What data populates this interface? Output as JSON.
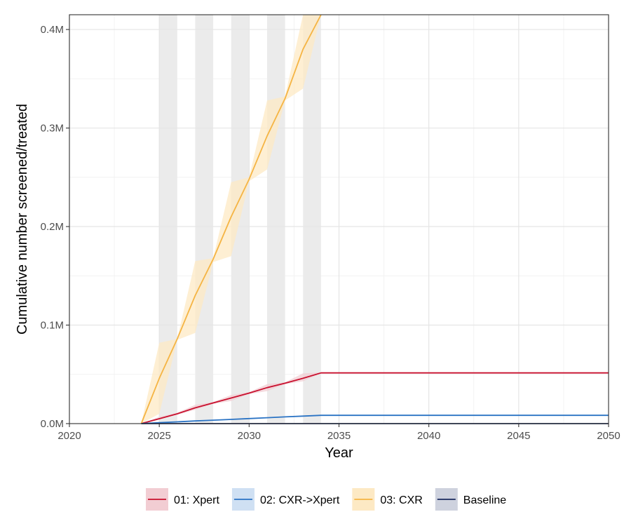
{
  "chart_data": {
    "type": "line",
    "title": "",
    "xlabel": "Year",
    "ylabel": "Cumulative number screened/treated",
    "xlim": [
      2020,
      2050
    ],
    "ylim": [
      0,
      415000
    ],
    "x_ticks": [
      2020,
      2025,
      2030,
      2035,
      2040,
      2045,
      2050
    ],
    "x_tick_labels": [
      "2020",
      "2025",
      "2030",
      "2035",
      "2040",
      "2045",
      "2050"
    ],
    "y_ticks": [
      0,
      100000,
      200000,
      300000,
      400000
    ],
    "y_tick_labels": [
      "0.0M",
      "0.1M",
      "0.2M",
      "0.3M",
      "0.4M"
    ],
    "grid": true,
    "shaded_periods": [
      [
        2025,
        2026
      ],
      [
        2027,
        2028
      ],
      [
        2029,
        2030
      ],
      [
        2031,
        2032
      ],
      [
        2033,
        2034
      ]
    ],
    "shade_color": "#ebebeb",
    "legend_position": "bottom",
    "series": [
      {
        "name": "01: Xpert",
        "color": "#c8102e",
        "fill": "#f2cdd3",
        "x": [
          2024,
          2025,
          2026,
          2027,
          2028,
          2029,
          2030,
          2031,
          2032,
          2033,
          2034,
          2050
        ],
        "y": [
          0,
          5000,
          10000,
          16000,
          21000,
          26000,
          31000,
          36500,
          41000,
          46000,
          51500,
          51500
        ],
        "lower": [
          0,
          4000,
          9000,
          14000,
          20000,
          23000,
          30000,
          33000,
          40000,
          43000,
          51000,
          51000
        ],
        "upper": [
          0,
          7000,
          11000,
          19000,
          22000,
          29000,
          32000,
          40000,
          42000,
          51000,
          52000,
          52000
        ]
      },
      {
        "name": "02: CXR->Xpert",
        "color": "#2a73c4",
        "fill": "#cfe0f3",
        "x": [
          2024,
          2025,
          2026,
          2027,
          2028,
          2029,
          2030,
          2031,
          2032,
          2033,
          2034,
          2050
        ],
        "y": [
          0,
          900,
          1800,
          2700,
          3500,
          4300,
          5100,
          6000,
          6800,
          7600,
          8400,
          8400
        ],
        "lower": [
          0,
          700,
          1600,
          2400,
          3300,
          4000,
          4900,
          5600,
          6600,
          7200,
          8200,
          8200
        ],
        "upper": [
          0,
          1100,
          2000,
          3000,
          3700,
          4600,
          5300,
          6400,
          7000,
          8000,
          8600,
          8600
        ]
      },
      {
        "name": "03: CXR",
        "color": "#f5b443",
        "fill": "#fde9c4",
        "x": [
          2024,
          2025,
          2026,
          2027,
          2028,
          2029,
          2030,
          2031,
          2032,
          2033,
          2034
        ],
        "y": [
          0,
          46000,
          86000,
          130000,
          167000,
          210000,
          248000,
          292000,
          330000,
          380000,
          415000
        ],
        "lower": [
          0,
          10000,
          85000,
          92000,
          164000,
          170000,
          246000,
          258000,
          328000,
          340000,
          415000
        ],
        "upper": [
          0,
          82000,
          86000,
          165000,
          168000,
          245000,
          250000,
          328000,
          332000,
          415000,
          415000
        ]
      },
      {
        "name": "Baseline",
        "color": "#1a2a5e",
        "fill": "#ced2de",
        "x": [
          2024,
          2050
        ],
        "y": [
          0,
          0
        ],
        "lower": [
          0,
          0
        ],
        "upper": [
          0,
          0
        ]
      }
    ]
  }
}
